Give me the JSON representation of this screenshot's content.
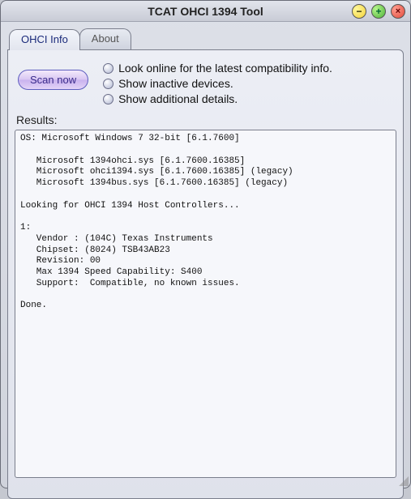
{
  "window": {
    "title": "TCAT OHCI 1394 Tool",
    "buttons": {
      "minimize": "−",
      "maximize": "+",
      "close": "×"
    }
  },
  "tabs": {
    "active": "OHCI Info",
    "inactive": "About"
  },
  "scan_button": "Scan now",
  "checks": {
    "online": "Look online for the latest compatibility info.",
    "inactive": "Show inactive devices.",
    "details": "Show additional details."
  },
  "results_label": "Results:",
  "results_text": "OS: Microsoft Windows 7 32-bit [6.1.7600]\n\n   Microsoft 1394ohci.sys [6.1.7600.16385]\n   Microsoft ohci1394.sys [6.1.7600.16385] (legacy)\n   Microsoft 1394bus.sys [6.1.7600.16385] (legacy)\n\nLooking for OHCI 1394 Host Controllers...\n\n1:\n   Vendor : (104C) Texas Instruments\n   Chipset: (8024) TSB43AB23\n   Revision: 00\n   Max 1394 Speed Capability: S400\n   Support:  Compatible, no known issues.\n\nDone.\n"
}
